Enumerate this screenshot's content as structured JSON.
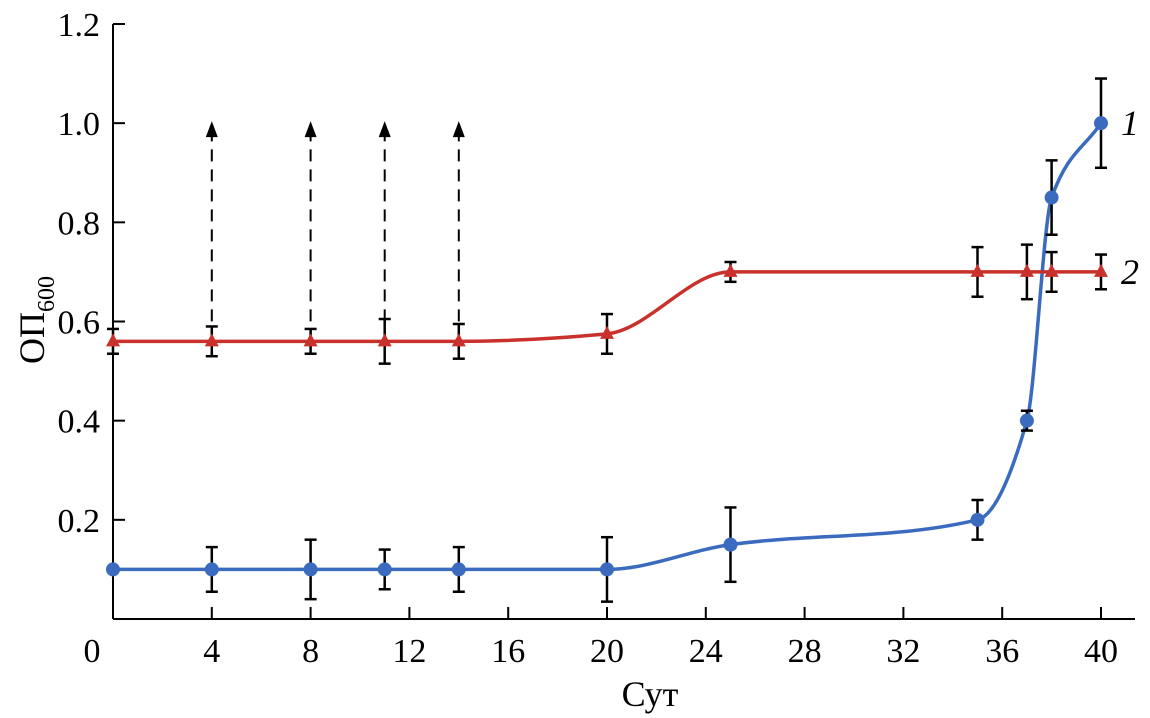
{
  "chart_data": {
    "type": "line",
    "title": "",
    "xlabel": "Сут",
    "ylabel_main": "ОП",
    "ylabel_sub": "600",
    "xlim": [
      0,
      41.5
    ],
    "ylim": [
      0,
      1.2
    ],
    "xticks": [
      0,
      4,
      8,
      12,
      16,
      20,
      24,
      28,
      32,
      36,
      40
    ],
    "yticks": [
      {
        "v": 0.2,
        "label": "0.2"
      },
      {
        "v": 0.4,
        "label": "0.4"
      },
      {
        "v": 0.6,
        "label": "0.6"
      },
      {
        "v": 0.8,
        "label": "0.8"
      },
      {
        "v": 1.0,
        "label": "1.0"
      },
      {
        "v": 1.2,
        "label": "1.2"
      }
    ],
    "origin_label": "0",
    "grid": false,
    "arrows_at_x": [
      4,
      8,
      11,
      14
    ],
    "arrow_top": 1.0,
    "series": [
      {
        "name": "1",
        "color": "#3a6bbf",
        "marker": "circle",
        "x": [
          0,
          4,
          8,
          11,
          14,
          20,
          25,
          35,
          37,
          38,
          40
        ],
        "y": [
          0.1,
          0.1,
          0.1,
          0.1,
          0.1,
          0.1,
          0.15,
          0.2,
          0.4,
          0.85,
          1.0
        ],
        "err": [
          0.005,
          0.045,
          0.06,
          0.04,
          0.045,
          0.065,
          0.075,
          0.04,
          0.02,
          0.075,
          0.09
        ]
      },
      {
        "name": "2",
        "color": "#c9312c",
        "marker": "triangle",
        "x": [
          0,
          4,
          8,
          11,
          14,
          20,
          25,
          35,
          37,
          38,
          40
        ],
        "y": [
          0.56,
          0.56,
          0.56,
          0.56,
          0.56,
          0.575,
          0.7,
          0.7,
          0.7,
          0.7,
          0.7
        ],
        "err": [
          0.025,
          0.03,
          0.025,
          0.045,
          0.035,
          0.04,
          0.02,
          0.05,
          0.055,
          0.04,
          0.035
        ]
      }
    ]
  }
}
